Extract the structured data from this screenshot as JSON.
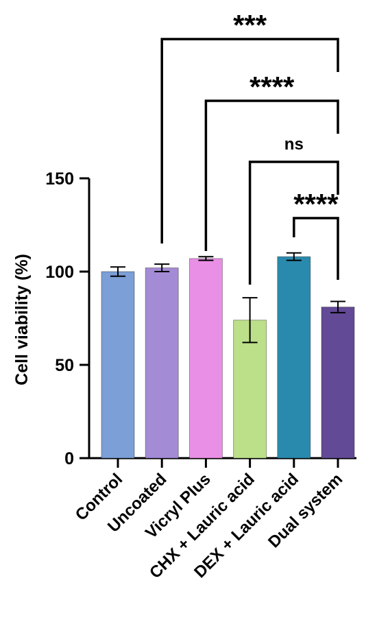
{
  "chart_data": {
    "type": "bar",
    "title": "",
    "xlabel": "",
    "ylabel": "Cell viability (%)",
    "ylim": [
      0,
      150
    ],
    "yticks": [
      0,
      50,
      100,
      150
    ],
    "grid": false,
    "categories": [
      "Control",
      "Uncoated",
      "Vicryl Plus",
      "CHX + Lauric acid",
      "DEX + Lauric acid",
      "Dual system"
    ],
    "values": [
      100,
      102,
      107,
      74,
      108,
      81
    ],
    "errors": [
      2.5,
      2,
      1,
      12,
      2,
      3
    ],
    "colors": [
      "#7b9fd6",
      "#a48bd6",
      "#ea8fe6",
      "#bcdf8a",
      "#2a8aad",
      "#634a96"
    ],
    "comparisons": [
      {
        "from": "Uncoated",
        "to": "Dual system",
        "label": "***"
      },
      {
        "from": "Vicryl Plus",
        "to": "Dual system",
        "label": "****"
      },
      {
        "from": "CHX + Lauric acid",
        "to": "Dual system",
        "label": "ns"
      },
      {
        "from": "DEX + Lauric acid",
        "to": "Dual system",
        "label": "****"
      }
    ]
  }
}
